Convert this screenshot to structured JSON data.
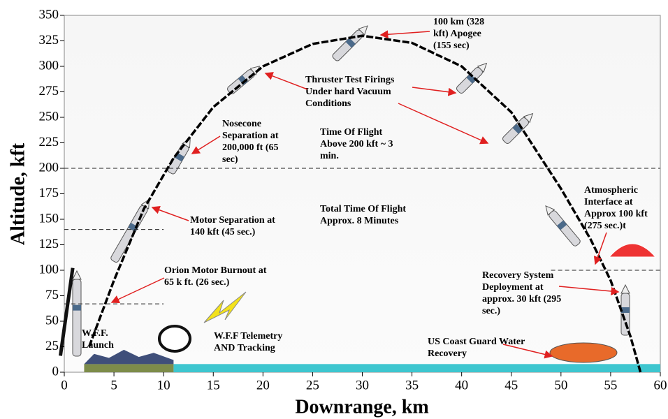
{
  "chart_data": {
    "type": "line",
    "xlabel": "Downrange, km",
    "ylabel": "Altitude, kft",
    "x": [
      2.5,
      5,
      8,
      11,
      15,
      20,
      25,
      30,
      35,
      40,
      45,
      50,
      53,
      55,
      57,
      58
    ],
    "values": [
      25,
      90,
      160,
      210,
      260,
      300,
      322,
      330,
      323,
      300,
      255,
      180,
      130,
      90,
      35,
      0
    ],
    "color": "#000000",
    "xlim": [
      0,
      60
    ],
    "xticks": [
      0,
      5,
      10,
      15,
      20,
      25,
      30,
      35,
      40,
      45,
      50,
      55,
      60
    ],
    "ylim": [
      0,
      350
    ],
    "yticks": [
      0,
      25,
      50,
      75,
      100,
      125,
      150,
      175,
      200,
      225,
      250,
      275,
      300,
      325,
      350
    ],
    "reference_lines": [
      {
        "y": 200,
        "x": [
          0,
          60
        ]
      },
      {
        "y": 140,
        "x": [
          0,
          10
        ]
      },
      {
        "y": 67,
        "x": [
          0,
          10
        ]
      },
      {
        "y": 100,
        "x": [
          49,
          60
        ]
      }
    ],
    "annotations": [
      {
        "lines": [
          "100 km (328",
          "kft) Apogee",
          "(155 sec)"
        ]
      },
      {
        "lines": [
          "Thruster Test Firings",
          "Under hard Vacuum",
          "Conditions"
        ]
      },
      {
        "lines": [
          "Nosecone",
          "Separation at",
          "200,000 ft (65",
          "sec)"
        ]
      },
      {
        "lines": [
          "Time Of Flight",
          "Above 200 kft ~ 3",
          "min."
        ]
      },
      {
        "lines": [
          "Motor Separation at",
          "140 kft (45 sec.)"
        ]
      },
      {
        "lines": [
          "Total Time Of Flight",
          "Approx. 8 Minutes"
        ]
      },
      {
        "lines": [
          "Orion Motor Burnout at",
          "65 k ft. (26 sec.)"
        ]
      },
      {
        "lines": [
          "W.F.F.",
          "Launch"
        ]
      },
      {
        "lines": [
          "W.F.F Telemetry",
          "AND Tracking"
        ]
      },
      {
        "lines": [
          "Atmospheric",
          "Interface at",
          "Approx 100 kft",
          "(275 sec.)t"
        ]
      },
      {
        "lines": [
          "Recovery System",
          "Deployment at",
          "approx. 30 kft (295",
          "sec.)"
        ]
      },
      {
        "lines": [
          "US Coast Guard Water",
          "Recovery"
        ]
      }
    ]
  }
}
